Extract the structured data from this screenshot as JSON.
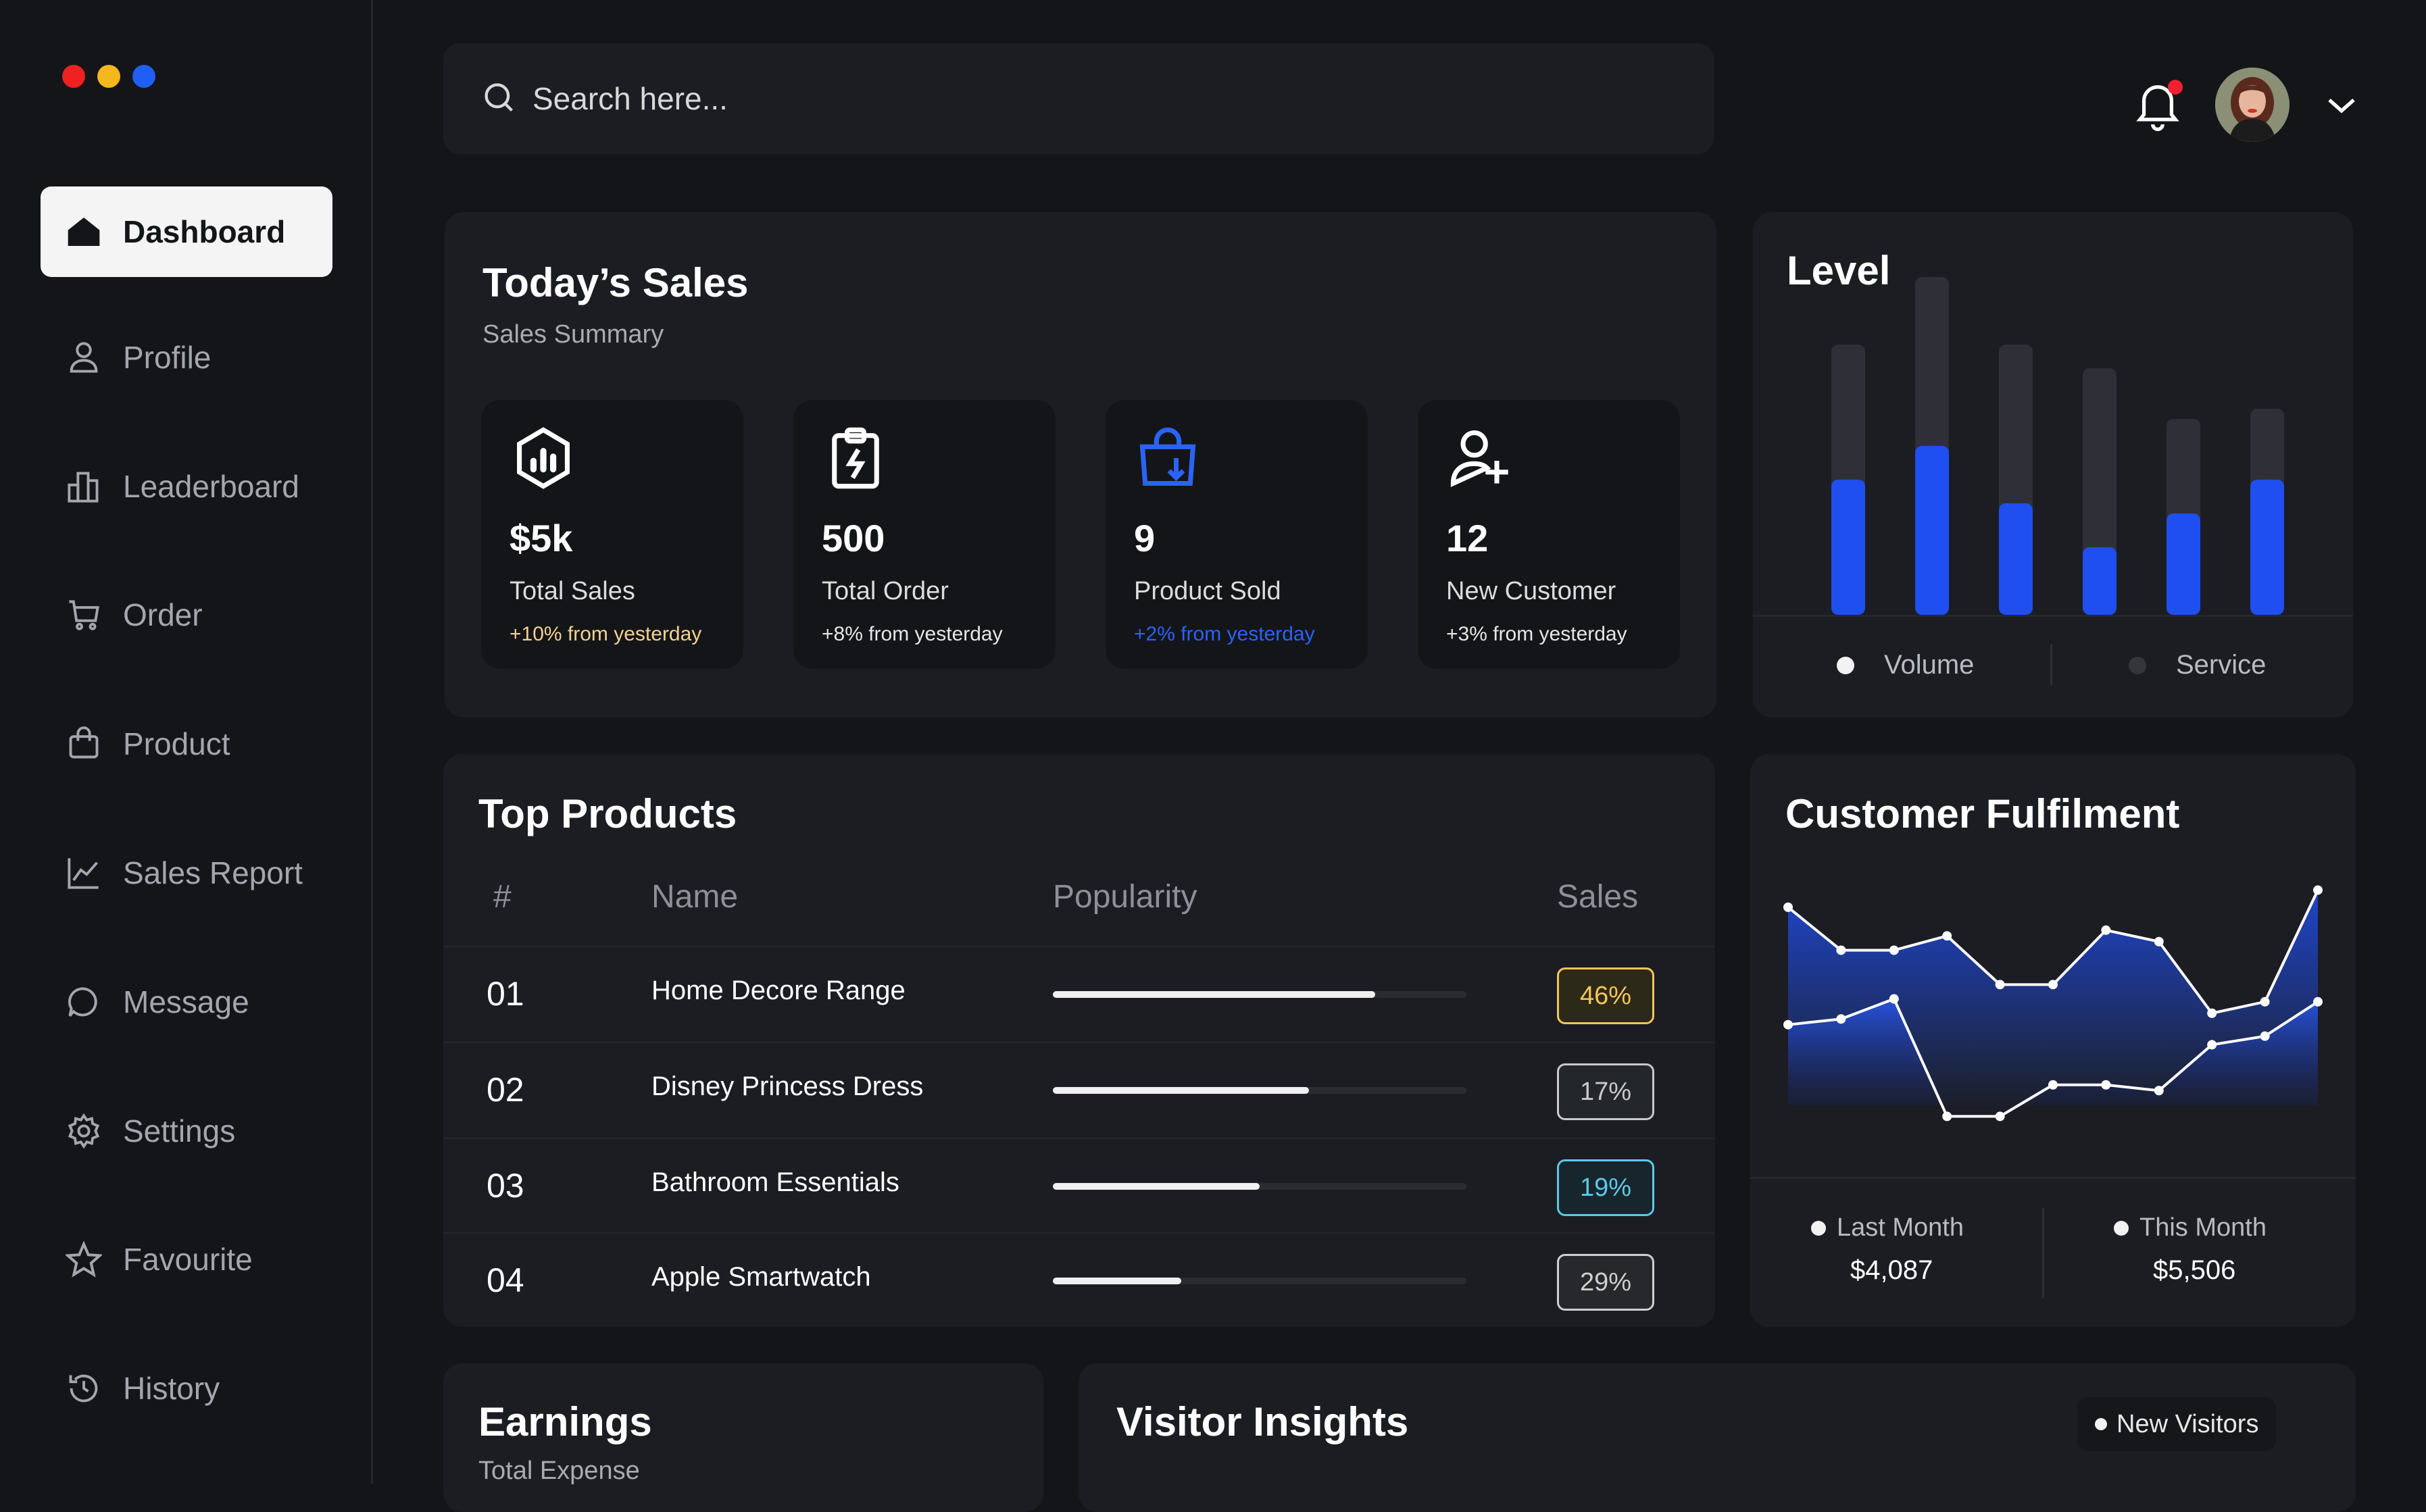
{
  "colors": {
    "red": "#ef2121",
    "yellow": "#f4b71c",
    "blue": "#1f5ff5",
    "accent_blue": "#1f4ff0"
  },
  "sidebar": {
    "items": [
      {
        "label": "Dashboard",
        "icon": "home-icon",
        "active": true
      },
      {
        "label": "Profile",
        "icon": "user-icon"
      },
      {
        "label": "Leaderboard",
        "icon": "bar-chart-icon"
      },
      {
        "label": "Order",
        "icon": "cart-icon"
      },
      {
        "label": "Product",
        "icon": "shopping-bag-icon"
      },
      {
        "label": "Sales Report",
        "icon": "line-chart-icon"
      },
      {
        "label": "Message",
        "icon": "chat-icon"
      },
      {
        "label": "Settings",
        "icon": "gear-icon"
      },
      {
        "label": "Favourite",
        "icon": "star-icon"
      },
      {
        "label": "History",
        "icon": "history-icon"
      }
    ]
  },
  "header": {
    "search_placeholder": "Search here..."
  },
  "todays_sales": {
    "title": "Today’s Sales",
    "subtitle": "Sales Summary",
    "stats": [
      {
        "value": "$5k",
        "label": "Total Sales",
        "change": "+10% from yesterday",
        "icon": "hexagon-chart-icon",
        "change_color": "#f3d28c"
      },
      {
        "value": "500",
        "label": "Total Order",
        "change": "+8% from yesterday",
        "icon": "clipboard-bolt-icon",
        "change_color": "#e6e6e6"
      },
      {
        "value": "9",
        "label": "Product Sold",
        "change": "+2% from yesterday",
        "icon": "bag-download-icon",
        "change_color": "#2a63f5"
      },
      {
        "value": "12",
        "label": "New Customer",
        "change": "+3% from yesterday",
        "icon": "user-add-icon",
        "change_color": "#e6e6e6"
      }
    ]
  },
  "level": {
    "title": "Level",
    "legend": [
      "Volume",
      "Service"
    ]
  },
  "level_chart_data": {
    "type": "bar",
    "series": [
      {
        "name": "Volume",
        "values": [
          0.4,
          0.5,
          0.33,
          0.2,
          0.3,
          0.4
        ]
      },
      {
        "name": "Service",
        "values": [
          0.4,
          0.5,
          0.47,
          0.53,
          0.28,
          0.21
        ]
      }
    ]
  },
  "top_products": {
    "title": "Top Products",
    "columns": [
      "#",
      "Name",
      "Popularity",
      "Sales"
    ],
    "rows": [
      {
        "num": "01",
        "name": "Home Decore Range",
        "popularity": 0.78,
        "sales": "46%",
        "color": "#f4c55a",
        "bg": "#2d2919"
      },
      {
        "num": "02",
        "name": "Disney Princess Dress",
        "popularity": 0.62,
        "sales": "17%",
        "color": "#c9c9c9",
        "bg": "#23262b"
      },
      {
        "num": "03",
        "name": "Bathroom Essentials",
        "popularity": 0.5,
        "sales": "19%",
        "color": "#5ec7e8",
        "bg": "#17262c"
      },
      {
        "num": "04",
        "name": "Apple Smartwatch",
        "popularity": 0.31,
        "sales": "29%",
        "color": "#cfcfcf",
        "bg": "#27282c"
      }
    ]
  },
  "customer_fulfilment": {
    "title": "Customer Fulfilment",
    "last_month_label": "Last Month",
    "last_month_value": "$4,087",
    "this_month_label": "This Month",
    "this_month_value": "$5,506"
  },
  "chart_data": {
    "type": "area",
    "x": [
      0,
      1,
      2,
      3,
      4,
      5,
      6,
      7,
      8,
      9,
      10
    ],
    "series": [
      {
        "name": "This Month",
        "values": [
          0.88,
          0.73,
          0.73,
          0.78,
          0.61,
          0.61,
          0.8,
          0.76,
          0.51,
          0.55,
          0.94
        ]
      },
      {
        "name": "Last Month",
        "values": [
          0.47,
          0.49,
          0.56,
          0.15,
          0.15,
          0.26,
          0.26,
          0.24,
          0.4,
          0.43,
          0.55
        ]
      }
    ],
    "ylim": [
      0,
      1
    ]
  },
  "earnings": {
    "title": "Earnings",
    "subtitle": "Total Expense"
  },
  "visitor_insights": {
    "title": "Visitor Insights",
    "legend": "New Visitors"
  }
}
